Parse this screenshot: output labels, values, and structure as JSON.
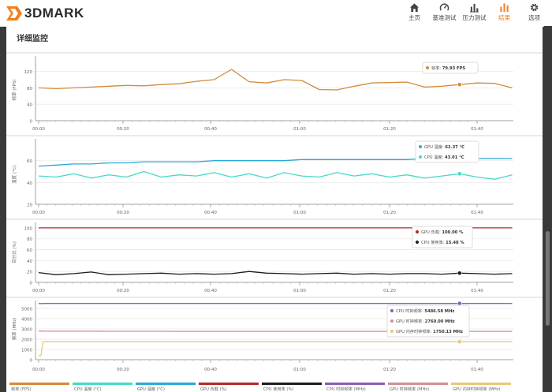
{
  "app": {
    "logo_text": "3DMARK"
  },
  "nav": [
    {
      "label": "主页",
      "icon": "home-icon",
      "active": false
    },
    {
      "label": "基准测试",
      "icon": "gauge-icon",
      "active": false
    },
    {
      "label": "压力测试",
      "icon": "bar-chart-icon",
      "active": false
    },
    {
      "label": "结果",
      "icon": "results-icon",
      "active": true
    },
    {
      "label": "选项",
      "icon": "gear-icon",
      "active": false
    }
  ],
  "page": {
    "title": "详细监控"
  },
  "colors": {
    "fps": "#d28b3a",
    "gpu_temp": "#2aa9d6",
    "cpu_temp": "#46d9c8",
    "gpu_load": "#b02a2a",
    "cpu_util": "#1c1c1c",
    "cpu_clock": "#8a5db8",
    "gpu_clock": "#d09090",
    "gpu_mem_clock": "#e7c97a"
  },
  "x_ticks": [
    "00:00",
    "00:20",
    "00:40",
    "01:00",
    "01:20",
    "01:40"
  ],
  "chart_data": [
    {
      "type": "line",
      "ylabel": "帧率 (FPS)",
      "ylim": [
        0,
        150
      ],
      "yticks": [
        0,
        40,
        80,
        120
      ],
      "x": [
        0,
        4,
        8,
        12,
        16,
        20,
        24,
        28,
        32,
        36,
        40,
        44,
        48,
        52,
        56,
        60,
        64,
        68,
        72,
        76,
        80,
        84,
        88,
        92,
        96,
        100,
        104,
        108
      ],
      "series": [
        {
          "name": "帧率",
          "value_label": "79.93 FPS",
          "color_key": "fps",
          "values": [
            80,
            78,
            80,
            82,
            84,
            86,
            85,
            88,
            90,
            96,
            100,
            125,
            95,
            92,
            100,
            98,
            76,
            75,
            84,
            92,
            93,
            94,
            82,
            84,
            88,
            92,
            91,
            80
          ]
        }
      ]
    },
    {
      "type": "line",
      "ylabel": "温度 (°C)",
      "ylim": [
        20,
        75
      ],
      "yticks": [
        20,
        40,
        60
      ],
      "x": [
        0,
        4,
        8,
        12,
        16,
        20,
        24,
        28,
        32,
        36,
        40,
        44,
        48,
        52,
        56,
        60,
        64,
        68,
        72,
        76,
        80,
        84,
        88,
        92,
        96,
        100,
        104,
        108
      ],
      "series": [
        {
          "name": "GPU 温度",
          "value_label": "62.37 °C",
          "color_key": "gpu_temp",
          "values": [
            55,
            56,
            57,
            57,
            58,
            58,
            59,
            59,
            59,
            59,
            60,
            60,
            60,
            60,
            60,
            61,
            61,
            61,
            61,
            61,
            61,
            61,
            62,
            62,
            62,
            62,
            62,
            62
          ]
        },
        {
          "name": "CPU 温度",
          "value_label": "43.01 °C",
          "color_key": "cpu_temp",
          "values": [
            46,
            45,
            48,
            44,
            47,
            45,
            50,
            45,
            47,
            46,
            49,
            45,
            48,
            44,
            49,
            46,
            45,
            49,
            46,
            48,
            45,
            47,
            44,
            46,
            48,
            45,
            43,
            47
          ]
        }
      ]
    },
    {
      "type": "line",
      "ylabel": "百分比 (%)",
      "ylim": [
        0,
        110
      ],
      "yticks": [
        0,
        20,
        40,
        60,
        80,
        100
      ],
      "x": [
        0,
        4,
        8,
        12,
        16,
        20,
        24,
        28,
        32,
        36,
        40,
        44,
        48,
        52,
        56,
        60,
        64,
        68,
        72,
        76,
        80,
        84,
        88,
        92,
        96,
        100,
        104,
        108
      ],
      "series": [
        {
          "name": "GPU 负载",
          "value_label": "100.00 %",
          "color_key": "gpu_load",
          "values": [
            100,
            100,
            100,
            100,
            100,
            100,
            100,
            100,
            100,
            100,
            100,
            100,
            100,
            100,
            100,
            100,
            100,
            100,
            100,
            100,
            100,
            100,
            100,
            100,
            100,
            100,
            100,
            100
          ]
        },
        {
          "name": "CPU 使用率",
          "value_label": "15.48 %",
          "color_key": "cpu_util",
          "values": [
            18,
            14,
            16,
            19,
            14,
            15,
            16,
            17,
            15,
            16,
            15,
            16,
            20,
            17,
            16,
            15,
            16,
            17,
            15,
            16,
            15,
            16,
            16,
            15,
            17,
            16,
            15,
            16
          ]
        }
      ]
    },
    {
      "type": "line",
      "ylabel": "频率 (MHz)",
      "ylim": [
        0,
        6000
      ],
      "yticks": [
        0,
        1000,
        2000,
        3000,
        4000,
        5000
      ],
      "x": [
        0,
        0.5,
        1,
        1.5,
        4,
        8,
        12,
        16,
        20,
        24,
        28,
        32,
        36,
        40,
        44,
        48,
        52,
        56,
        60,
        64,
        68,
        72,
        76,
        80,
        84,
        88,
        92,
        96,
        100,
        104,
        108
      ],
      "series": [
        {
          "name": "CPU 时钟频率",
          "value_label": "5486.58 MHz",
          "color_key": "cpu_clock",
          "values": [
            5480,
            5480,
            5480,
            5485,
            5486,
            5486,
            5486,
            5486,
            5486,
            5486,
            5486,
            5486,
            5486,
            5486,
            5486,
            5486,
            5486,
            5486,
            5486,
            5486,
            5486,
            5486,
            5486,
            5486,
            5486,
            5486,
            5486,
            5486,
            5486,
            5486,
            5486
          ]
        },
        {
          "name": "GPU 时钟频率",
          "value_label": "2760.00 MHz",
          "color_key": "gpu_clock",
          "values": [
            2790,
            2790,
            2785,
            2780,
            2780,
            2775,
            2775,
            2770,
            2770,
            2770,
            2770,
            2765,
            2765,
            2765,
            2765,
            2765,
            2765,
            2760,
            2760,
            2760,
            2760,
            2760,
            2760,
            2760,
            2760,
            2760,
            2760,
            2760,
            2760,
            2760,
            2760
          ]
        },
        {
          "name": "GPU 内存时钟频率",
          "value_label": "1750.13 MHz",
          "color_key": "gpu_mem_clock",
          "values": [
            400,
            400,
            1750,
            1750,
            1750,
            1750,
            1750,
            1750,
            1750,
            1750,
            1750,
            1750,
            1750,
            1750,
            1750,
            1750,
            1750,
            1750,
            1750,
            1750,
            1750,
            1750,
            1750,
            1750,
            1750,
            1750,
            1750,
            1750,
            1750,
            1750,
            1750
          ]
        }
      ]
    }
  ],
  "legend_tabs": [
    {
      "label": "帧率 (FPS)",
      "color_key": "fps"
    },
    {
      "label": "CPU 温度 (°C)",
      "color_key": "cpu_temp"
    },
    {
      "label": "GPU 温度 (°C)",
      "color_key": "gpu_temp"
    },
    {
      "label": "GPU 负载 (%)",
      "color_key": "gpu_load"
    },
    {
      "label": "CPU 使用率 (%)",
      "color_key": "cpu_util"
    },
    {
      "label": "CPU 时钟频率 (MHz)",
      "color_key": "cpu_clock"
    },
    {
      "label": "GPU 时钟频率 (MHz)",
      "color_key": "gpu_clock"
    },
    {
      "label": "GPU 内存时钟频率 (MHz)",
      "color_key": "gpu_mem_clock"
    }
  ]
}
